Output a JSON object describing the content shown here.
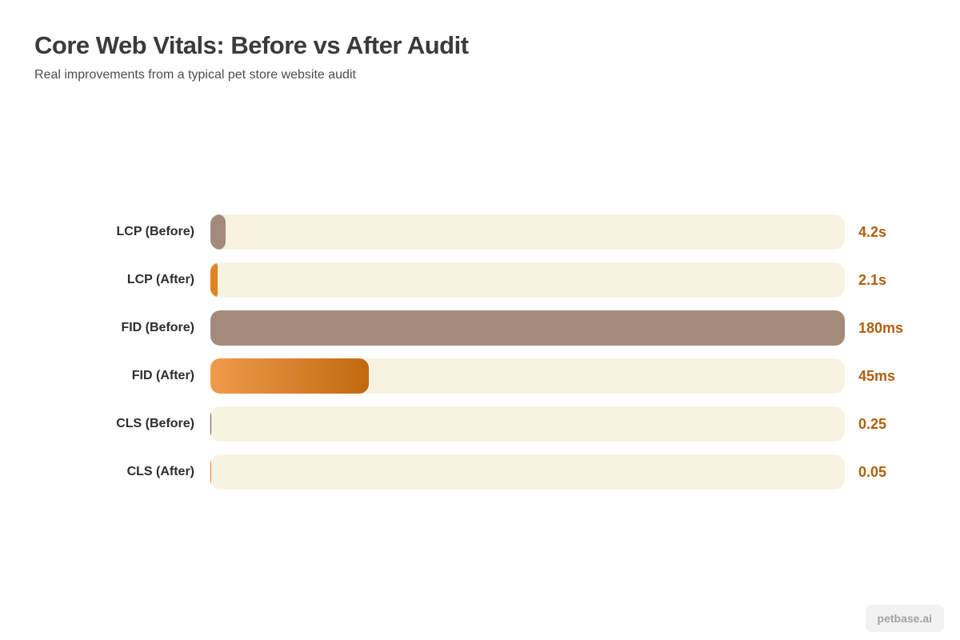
{
  "header": {
    "title": "Core Web Vitals: Before vs After Audit",
    "subtitle": "Real improvements from a typical pet store website audit"
  },
  "chart_data": {
    "type": "bar",
    "orientation": "horizontal",
    "title": "Core Web Vitals: Before vs After Audit",
    "subtitle": "Real improvements from a typical pet store website audit",
    "xlabel": "",
    "ylabel": "",
    "axis_max": 180,
    "grid": false,
    "legend": false,
    "categories": [
      "LCP (Before)",
      "LCP (After)",
      "FID (Before)",
      "FID (After)",
      "CLS (Before)",
      "CLS (After)"
    ],
    "values": [
      4.2,
      2.1,
      180,
      45,
      0.25,
      0.05
    ],
    "value_labels": [
      "4.2s",
      "2.1s",
      "180ms",
      "45ms",
      "0.25",
      "0.05"
    ],
    "rows": [
      {
        "label": "LCP (Before)",
        "value": 4.2,
        "display": "4.2s",
        "fill": "#a48a7b"
      },
      {
        "label": "LCP (After)",
        "value": 2.1,
        "display": "2.1s",
        "fill": "#e0831f"
      },
      {
        "label": "FID (Before)",
        "value": 180,
        "display": "180ms",
        "fill": "#a48a7b"
      },
      {
        "label": "FID (After)",
        "value": 45,
        "display": "45ms",
        "fill_gradient": [
          "#f09a4c",
          "#c2690e"
        ]
      },
      {
        "label": "CLS (Before)",
        "value": 0.25,
        "display": "0.25",
        "fill": "#8a4a40"
      },
      {
        "label": "CLS (After)",
        "value": 0.05,
        "display": "0.05",
        "fill": "#e0831f"
      }
    ]
  },
  "colors": {
    "track": "#f8f2e3",
    "bar_before": "#a48a7b",
    "bar_after_orange": "#e0831f",
    "gradient_start": "#f09a4c",
    "gradient_end": "#c2690e",
    "value_text": "#b2600f",
    "title_text": "#3a3a3a"
  },
  "footer": {
    "watermark": "petbase.ai"
  }
}
